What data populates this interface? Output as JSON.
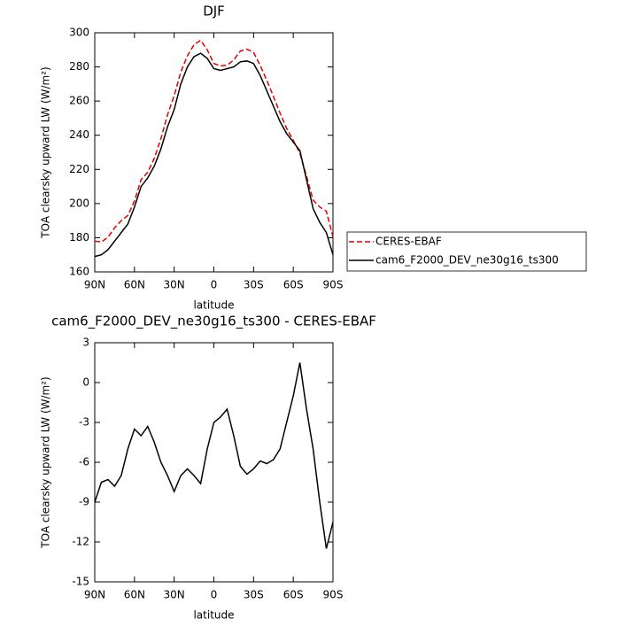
{
  "chart_data": [
    {
      "type": "line",
      "title": "DJF",
      "xlabel": "latitude",
      "ylabel": "TOA clearsky upward LW (W/m²)",
      "x": [
        90,
        85,
        80,
        75,
        70,
        65,
        60,
        55,
        50,
        45,
        40,
        35,
        30,
        25,
        20,
        15,
        10,
        5,
        0,
        -5,
        -10,
        -15,
        -20,
        -25,
        -30,
        -35,
        -40,
        -45,
        -50,
        -55,
        -60,
        -65,
        -70,
        -75,
        -80,
        -85,
        -90
      ],
      "series": [
        {
          "name": "CERES-EBAF",
          "color": "#e00000",
          "dash": "dashed",
          "values": [
            178,
            177.5,
            180.3,
            185.8,
            190,
            193,
            201.5,
            214,
            218.3,
            226.5,
            238,
            252,
            263.2,
            277,
            286.5,
            293,
            295.6,
            290,
            282,
            280.6,
            281,
            284,
            289.3,
            290.4,
            288.5,
            280.9,
            272.1,
            262.8,
            253,
            244,
            237,
            229.5,
            216,
            202,
            198,
            195.5,
            180.5
          ]
        },
        {
          "name": "cam6_F2000_DEV_ne30g16_ts300",
          "color": "#000000",
          "dash": "solid",
          "values": [
            169,
            170,
            173,
            178,
            183,
            188,
            198,
            210,
            215,
            222,
            232,
            245,
            255,
            270,
            280,
            286,
            288,
            285,
            279,
            278,
            279,
            280,
            283,
            283.5,
            282,
            275,
            266,
            257,
            248,
            241,
            236,
            231,
            214,
            197,
            189,
            183,
            170
          ]
        }
      ],
      "xlim": [
        90,
        -90
      ],
      "xticks": [
        {
          "value": 90,
          "label": "90N"
        },
        {
          "value": 60,
          "label": "60N"
        },
        {
          "value": 30,
          "label": "30N"
        },
        0,
        {
          "value": -30,
          "label": "30S"
        },
        {
          "value": -60,
          "label": "60S"
        },
        {
          "value": -90,
          "label": "90S"
        }
      ],
      "ylim": [
        160,
        300
      ],
      "yticks": [
        160,
        180,
        200,
        220,
        240,
        260,
        280,
        300
      ],
      "legend": "right"
    },
    {
      "type": "line",
      "title": "cam6_F2000_DEV_ne30g16_ts300 - CERES-EBAF",
      "xlabel": "latitude",
      "ylabel": "TOA clearsky upward LW (W/m²)",
      "x": [
        90,
        85,
        80,
        75,
        70,
        65,
        60,
        55,
        50,
        45,
        40,
        35,
        30,
        25,
        20,
        15,
        10,
        5,
        0,
        -5,
        -10,
        -15,
        -20,
        -25,
        -30,
        -35,
        -40,
        -45,
        -50,
        -55,
        -60,
        -65,
        -70,
        -75,
        -80,
        -85,
        -90
      ],
      "series": [
        {
          "color": "#000000",
          "dash": "solid",
          "values": [
            -9,
            -7.5,
            -7.3,
            -7.8,
            -7,
            -5,
            -3.5,
            -4,
            -3.3,
            -4.5,
            -6,
            -7,
            -8.2,
            -7,
            -6.5,
            -7,
            -7.6,
            -5,
            -3,
            -2.6,
            -2,
            -4,
            -6.3,
            -6.9,
            -6.5,
            -5.9,
            -6.1,
            -5.8,
            -5,
            -3,
            -1,
            1.5,
            -2,
            -5,
            -9,
            -12.5,
            -10.5
          ]
        }
      ],
      "xlim": [
        90,
        -90
      ],
      "xticks": [
        {
          "value": 90,
          "label": "90N"
        },
        {
          "value": 60,
          "label": "60N"
        },
        {
          "value": 30,
          "label": "30N"
        },
        0,
        {
          "value": -30,
          "label": "30S"
        },
        {
          "value": -60,
          "label": "60S"
        },
        {
          "value": -90,
          "label": "90S"
        }
      ],
      "ylim": [
        -15,
        3
      ],
      "yticks": [
        -15,
        -12,
        -9,
        -6,
        -3,
        0,
        3
      ]
    }
  ]
}
